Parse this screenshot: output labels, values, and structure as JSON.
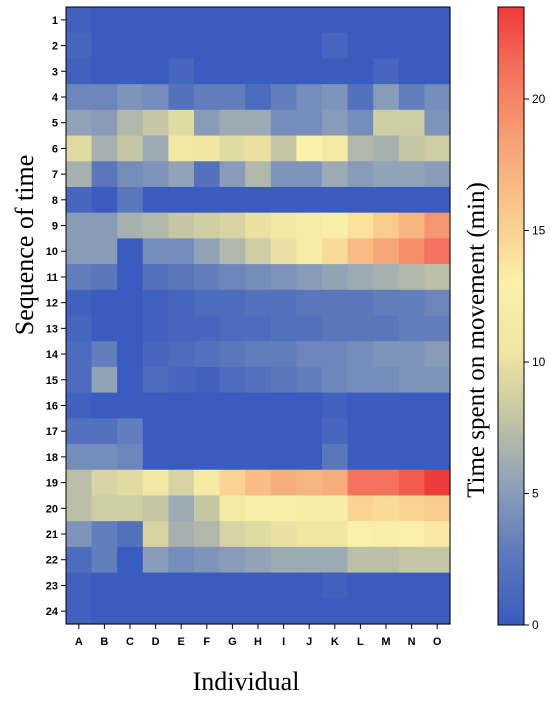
{
  "chart_data": {
    "type": "heatmap",
    "xlabel": "Individual",
    "ylabel": "Sequence of time",
    "colorbar_label": "Time spent on movement  (min)",
    "colorbar_range": [
      0,
      23.5
    ],
    "colorbar_ticks": [
      "0",
      "5",
      "10",
      "15",
      "20"
    ],
    "colorbar_tick_values": [
      0,
      5,
      10,
      15,
      20
    ],
    "colorscale": [
      "#3a5bbf",
      "#5b78bc",
      "#8c9fb9",
      "#c2c4a4",
      "#f1e6a2",
      "#fbf0a8",
      "#f9c88a",
      "#f6a377",
      "#f4755e",
      "#ee3b3b"
    ],
    "x_categories": [
      "A",
      "B",
      "C",
      "D",
      "E",
      "F",
      "G",
      "H",
      "I",
      "J",
      "K",
      "L",
      "M",
      "N",
      "O"
    ],
    "y_categories": [
      "1",
      "2",
      "3",
      "4",
      "5",
      "6",
      "7",
      "8",
      "9",
      "10",
      "11",
      "12",
      "13",
      "14",
      "15",
      "16",
      "17",
      "18",
      "19",
      "20",
      "21",
      "22",
      "23",
      "24"
    ],
    "values": [
      [
        0.5,
        0,
        0,
        0,
        0,
        0,
        0,
        0,
        0,
        0,
        0,
        0,
        0,
        0,
        0
      ],
      [
        1,
        0,
        0,
        0,
        0,
        0,
        0,
        0,
        0,
        0,
        1,
        0,
        0,
        0,
        0
      ],
      [
        0.5,
        0,
        0,
        0,
        1,
        0,
        0,
        0,
        0,
        0,
        0,
        0,
        1,
        0,
        0
      ],
      [
        3.5,
        3.5,
        4.5,
        4,
        2,
        3,
        3,
        1.5,
        3,
        4,
        4.5,
        2,
        5,
        3,
        4
      ],
      [
        5.5,
        5,
        7,
        8,
        9.5,
        5,
        6,
        6,
        4,
        4,
        5,
        4,
        8.5,
        8.5,
        4.5
      ],
      [
        9.5,
        6.5,
        8,
        6,
        11,
        10.5,
        9.5,
        10,
        8,
        13,
        11.5,
        7,
        6.5,
        8,
        8.5
      ],
      [
        6.5,
        2.5,
        4,
        4.5,
        5.5,
        2,
        5,
        7,
        4.5,
        4.5,
        6,
        5,
        5.5,
        5.5,
        5
      ],
      [
        1,
        0,
        2.5,
        0,
        0,
        0,
        0,
        0,
        0,
        0,
        0,
        0,
        0,
        0,
        0
      ],
      [
        5,
        5,
        6.5,
        7,
        8,
        8.5,
        9,
        10,
        11,
        12,
        12.5,
        14,
        15.5,
        17,
        19
      ],
      [
        5,
        5,
        0,
        4,
        4,
        5.5,
        7,
        8.5,
        10,
        12,
        14.5,
        16.5,
        18,
        19.5,
        21
      ],
      [
        3,
        2.5,
        0,
        2,
        2.5,
        3,
        3.5,
        4,
        4.5,
        5,
        5.5,
        6,
        6.5,
        7,
        7.5
      ],
      [
        0.5,
        0,
        0,
        0.5,
        1,
        1.5,
        1.5,
        2,
        2,
        2.5,
        2.5,
        2.5,
        3,
        3,
        3.5
      ],
      [
        1,
        0,
        0,
        0.5,
        1,
        1,
        1.5,
        1.5,
        2,
        2,
        2.5,
        2.5,
        2.5,
        3,
        3
      ],
      [
        1.5,
        3,
        0,
        1,
        1.5,
        2,
        2.5,
        3,
        3,
        3.5,
        3.5,
        4,
        4.5,
        4.5,
        5
      ],
      [
        1.5,
        5.5,
        0,
        1.5,
        1,
        0.5,
        1.5,
        2,
        2.5,
        3,
        3.5,
        4,
        4,
        4.5,
        4.5
      ],
      [
        0.5,
        0,
        0,
        0,
        0,
        0,
        0,
        0,
        0,
        0,
        0.5,
        0,
        0,
        0,
        0
      ],
      [
        2,
        2,
        3,
        0,
        0,
        0,
        0,
        0,
        0,
        0,
        1,
        0,
        0,
        0,
        0
      ],
      [
        4,
        4,
        3.5,
        0,
        0,
        0,
        0,
        0,
        0,
        0,
        2.5,
        0,
        0,
        0,
        0
      ],
      [
        7.5,
        9,
        9.5,
        11,
        9,
        11.5,
        15,
        16.5,
        17.5,
        17,
        17.5,
        21,
        21,
        22,
        23.5
      ],
      [
        7.5,
        8.5,
        8.5,
        8,
        6,
        8,
        11.5,
        12.5,
        12.5,
        12,
        12,
        15,
        14.5,
        15,
        15.5
      ],
      [
        4.5,
        3,
        2,
        9,
        6.5,
        7,
        9,
        9.5,
        10,
        10.5,
        10.5,
        13,
        12.5,
        13,
        13.5
      ],
      [
        1.5,
        3,
        0,
        5,
        4,
        4.5,
        5,
        5.5,
        6,
        6,
        6,
        7.5,
        7.5,
        8,
        8
      ],
      [
        0.5,
        0,
        0,
        0,
        0,
        0,
        0,
        0,
        0,
        0,
        0.5,
        0,
        0,
        0,
        0
      ],
      [
        0.5,
        0,
        0,
        0,
        0,
        0,
        0,
        0,
        0,
        0,
        0,
        0,
        0,
        0,
        0
      ]
    ]
  }
}
